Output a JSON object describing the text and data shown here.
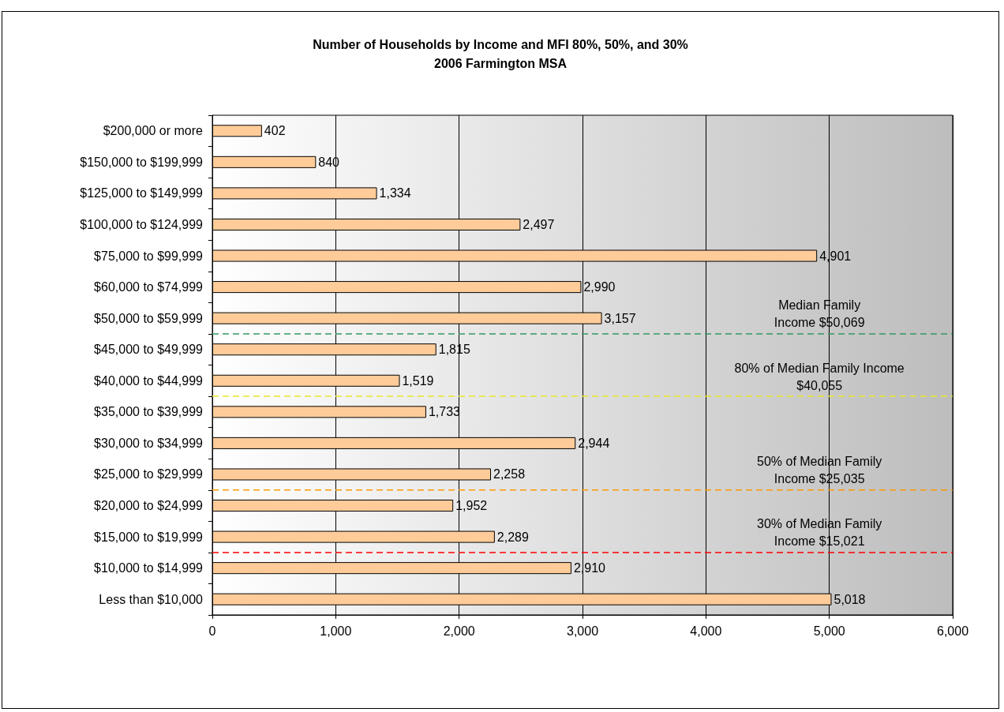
{
  "chart_data": {
    "type": "bar",
    "orientation": "horizontal",
    "title": "Number of Households by Income and MFI 80%, 50%, and 30%",
    "subtitle": "2006 Farmington MSA",
    "categories": [
      "$200,000 or more",
      "$150,000 to $199,999",
      "$125,000 to $149,999",
      "$100,000 to $124,999",
      "$75,000 to $99,999",
      "$60,000 to $74,999",
      "$50,000 to $59,999",
      "$45,000 to $49,999",
      "$40,000 to $44,999",
      "$35,000 to $39,999",
      "$30,000 to $34,999",
      "$25,000 to $29,999",
      "$20,000 to $24,999",
      "$15,000 to $19,999",
      "$10,000 to $14,999",
      "Less than $10,000"
    ],
    "values": [
      402,
      840,
      1334,
      2497,
      4901,
      2990,
      3157,
      1815,
      1519,
      1733,
      2944,
      2258,
      1952,
      2289,
      2910,
      5018
    ],
    "value_labels": [
      "402",
      "840",
      "1,334",
      "2,497",
      "4,901",
      "2,990",
      "3,157",
      "1,815",
      "1,519",
      "1,733",
      "2,944",
      "2,258",
      "1,952",
      "2,289",
      "2,910",
      "5,018"
    ],
    "color": "#ffcc99",
    "xlim": [
      0,
      6000
    ],
    "xticks": [
      0,
      {
        "value": 1000,
        "label": "1,000"
      },
      {
        "value": 2000,
        "label": "2,000"
      },
      {
        "value": 3000,
        "label": "3,000"
      },
      {
        "value": 4000,
        "label": "4,000"
      },
      {
        "value": 5000,
        "label": "5,000"
      },
      {
        "value": 6000,
        "label": "6,000"
      }
    ],
    "grid": "x",
    "ref_lines": [
      {
        "axis": "y",
        "value": "$50,000 to $59,999",
        "label": "Median Family\nIncome $50,069",
        "color": "#339966",
        "line_style": "dashed"
      },
      {
        "axis": "y",
        "value": "$40,000 to $44,999",
        "label": "80% of Median Family Income\n$40,055",
        "color": "#e8e82a",
        "line_style": "dashed"
      },
      {
        "axis": "y",
        "value": "$25,000 to $29,999",
        "label": "50% of Median Family\nIncome $25,035",
        "color": "#ff9900",
        "line_style": "dashed"
      },
      {
        "axis": "y",
        "value": "$15,000 to $19,999",
        "label": "30% of Median Family\nIncome $15,021",
        "color": "#ff0000",
        "line_style": "dashed"
      }
    ]
  }
}
